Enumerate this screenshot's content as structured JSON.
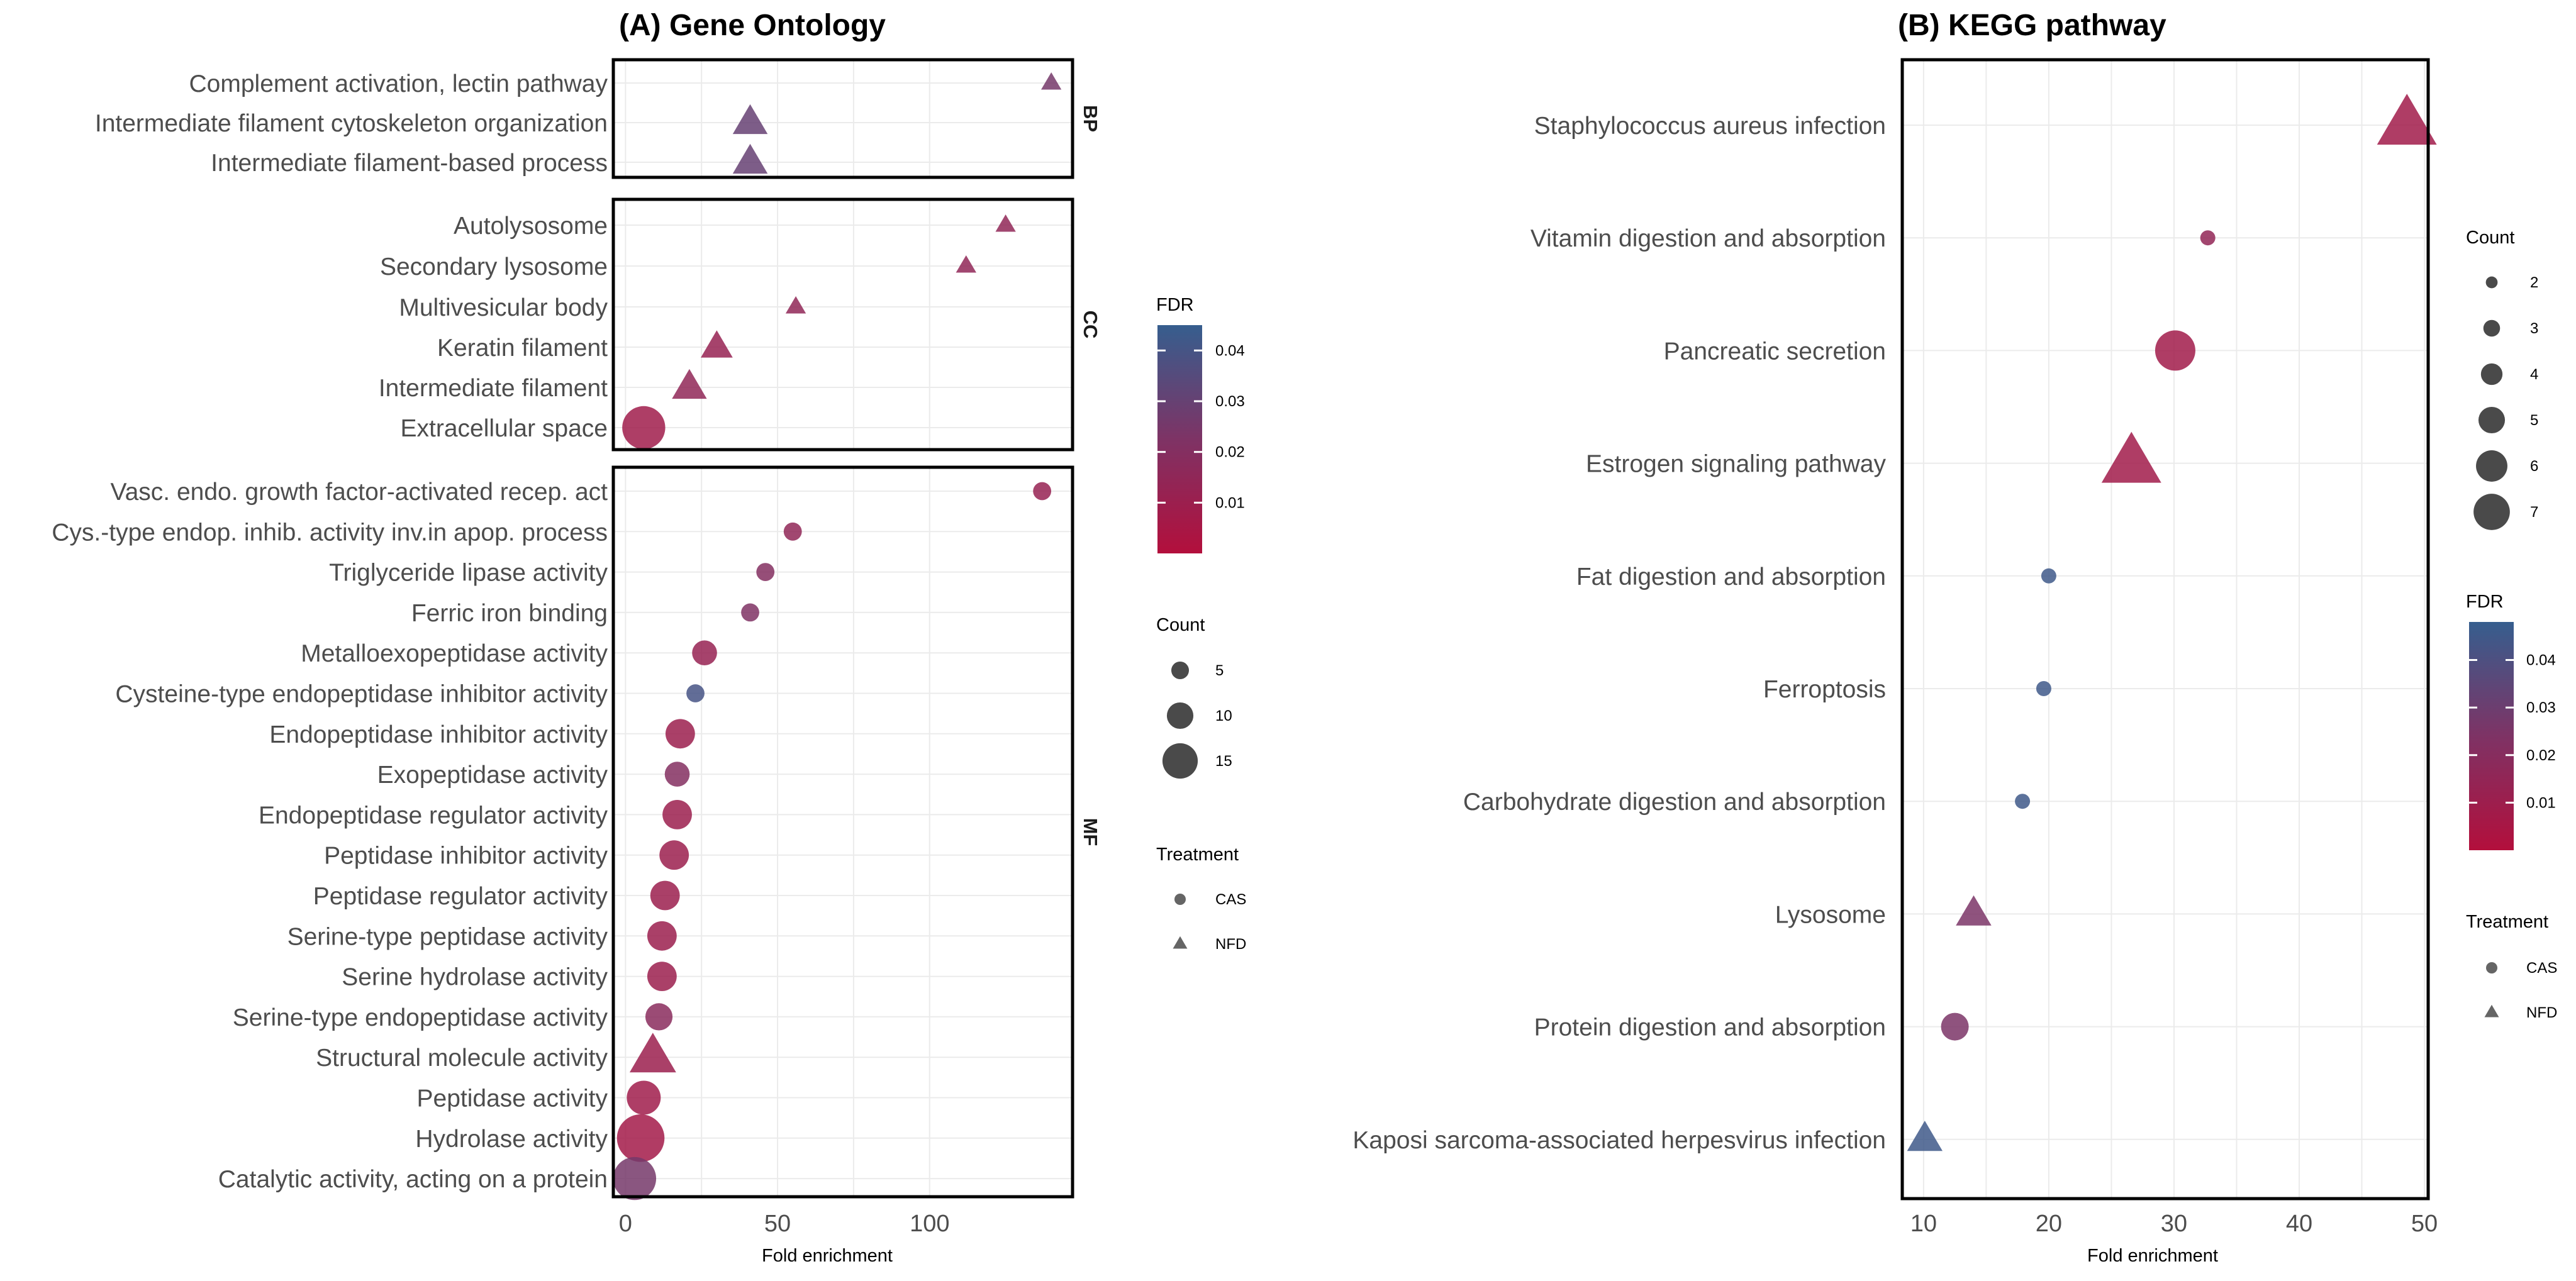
{
  "chart_data": [
    {
      "type": "scatter",
      "title": "(A) Gene Ontology",
      "xlabel": "Fold enrichment",
      "ylabel": "",
      "xlim": [
        -4,
        147
      ],
      "xticks": [
        0,
        50,
        100
      ],
      "facets": [
        {
          "name": "BP",
          "points": [
            {
              "term": "Complement activation, lectin pathway",
              "x": 140,
              "count": 2,
              "fdr": 0.025,
              "treatment": "NFD"
            },
            {
              "term": "Intermediate filament cytoskeleton organization",
              "x": 41,
              "count": 7,
              "fdr": 0.03,
              "treatment": "NFD"
            },
            {
              "term": "Intermediate filament-based process",
              "x": 41,
              "count": 7,
              "fdr": 0.03,
              "treatment": "NFD"
            }
          ]
        },
        {
          "name": "CC",
          "points": [
            {
              "term": "Autolysosome",
              "x": 125,
              "count": 2,
              "fdr": 0.015,
              "treatment": "NFD"
            },
            {
              "term": "Secondary lysosome",
              "x": 112,
              "count": 2,
              "fdr": 0.015,
              "treatment": "NFD"
            },
            {
              "term": "Multivesicular body",
              "x": 56,
              "count": 2,
              "fdr": 0.015,
              "treatment": "NFD"
            },
            {
              "term": "Keratin filament",
              "x": 30,
              "count": 6,
              "fdr": 0.012,
              "treatment": "NFD"
            },
            {
              "term": "Intermediate filament",
              "x": 21,
              "count": 7,
              "fdr": 0.015,
              "treatment": "NFD"
            },
            {
              "term": "Extracellular space",
              "x": 6,
              "count": 14,
              "fdr": 0.008,
              "treatment": "CAS"
            }
          ]
        },
        {
          "name": "MF",
          "points": [
            {
              "term": "Vasc. endo. growth factor-activated recep. act",
              "x": 137,
              "count": 3,
              "fdr": 0.012,
              "treatment": "CAS"
            },
            {
              "term": "Cys.-type endop. inhib. activity inv.in apop. process",
              "x": 55,
              "count": 3,
              "fdr": 0.015,
              "treatment": "CAS"
            },
            {
              "term": "Triglyceride lipase activity",
              "x": 46,
              "count": 3,
              "fdr": 0.02,
              "treatment": "CAS"
            },
            {
              "term": "Ferric iron binding",
              "x": 41,
              "count": 3,
              "fdr": 0.022,
              "treatment": "CAS"
            },
            {
              "term": "Metalloexopeptidase activity",
              "x": 26,
              "count": 6,
              "fdr": 0.012,
              "treatment": "CAS"
            },
            {
              "term": "Cysteine-type endopeptidase inhibitor activity",
              "x": 23,
              "count": 3,
              "fdr": 0.04,
              "treatment": "CAS"
            },
            {
              "term": "Endopeptidase inhibitor activity",
              "x": 18,
              "count": 8,
              "fdr": 0.01,
              "treatment": "CAS"
            },
            {
              "term": "Exopeptidase activity",
              "x": 17,
              "count": 6,
              "fdr": 0.02,
              "treatment": "CAS"
            },
            {
              "term": "Endopeptidase regulator activity",
              "x": 17,
              "count": 8,
              "fdr": 0.01,
              "treatment": "CAS"
            },
            {
              "term": "Peptidase inhibitor activity",
              "x": 16,
              "count": 8,
              "fdr": 0.01,
              "treatment": "CAS"
            },
            {
              "term": "Peptidase regulator activity",
              "x": 13,
              "count": 8,
              "fdr": 0.01,
              "treatment": "CAS"
            },
            {
              "term": "Serine-type peptidase activity",
              "x": 12,
              "count": 8,
              "fdr": 0.01,
              "treatment": "CAS"
            },
            {
              "term": "Serine hydrolase activity",
              "x": 12,
              "count": 8,
              "fdr": 0.01,
              "treatment": "CAS"
            },
            {
              "term": "Serine-type endopeptidase activity",
              "x": 11,
              "count": 7,
              "fdr": 0.018,
              "treatment": "CAS"
            },
            {
              "term": "Structural molecule activity",
              "x": 9,
              "count": 11,
              "fdr": 0.01,
              "treatment": "NFD"
            },
            {
              "term": "Peptidase activity",
              "x": 6,
              "count": 10,
              "fdr": 0.008,
              "treatment": "CAS"
            },
            {
              "term": "Hydrolase activity",
              "x": 5,
              "count": 16,
              "fdr": 0.007,
              "treatment": "CAS"
            },
            {
              "term": "Catalytic activity, acting on a protein",
              "x": 3,
              "count": 14,
              "fdr": 0.025,
              "treatment": "CAS"
            }
          ]
        }
      ],
      "legend": {
        "fdr_title": "FDR",
        "fdr_range": [
          0.0,
          0.045
        ],
        "fdr_ticks": [
          0.01,
          0.02,
          0.03,
          0.04
        ],
        "fdr_tick_labels": [
          "0.01",
          "0.02",
          "0.03",
          "0.04"
        ],
        "count_title": "Count",
        "count_levels": [
          5,
          10,
          15
        ],
        "count_labels": [
          "5",
          "10",
          "15"
        ],
        "treatment_title": "Treatment",
        "treatments": [
          "CAS",
          "NFD"
        ]
      }
    },
    {
      "type": "scatter",
      "title": "(B) KEGG pathway",
      "xlabel": "Fold enrichment",
      "ylabel": "",
      "xlim": [
        8.3,
        50.3
      ],
      "xticks": [
        10,
        20,
        30,
        40,
        50
      ],
      "points": [
        {
          "term": "Staphylococcus aureus infection",
          "x": 48.6,
          "count": 7,
          "fdr": 0.008,
          "treatment": "NFD"
        },
        {
          "term": "Vitamin digestion and absorption",
          "x": 32.7,
          "count": 2,
          "fdr": 0.015,
          "treatment": "CAS"
        },
        {
          "term": "Pancreatic secretion",
          "x": 30.1,
          "count": 6,
          "fdr": 0.008,
          "treatment": "CAS"
        },
        {
          "term": "Estrogen signaling pathway",
          "x": 26.6,
          "count": 7,
          "fdr": 0.008,
          "treatment": "NFD"
        },
        {
          "term": "Fat digestion and absorption",
          "x": 20.0,
          "count": 2,
          "fdr": 0.045,
          "treatment": "CAS"
        },
        {
          "term": "Ferroptosis",
          "x": 19.6,
          "count": 2,
          "fdr": 0.045,
          "treatment": "CAS"
        },
        {
          "term": "Carbohydrate digestion and absorption",
          "x": 17.9,
          "count": 2,
          "fdr": 0.045,
          "treatment": "CAS"
        },
        {
          "term": "Lysosome",
          "x": 14.0,
          "count": 4,
          "fdr": 0.025,
          "treatment": "NFD"
        },
        {
          "term": "Protein digestion and absorption",
          "x": 12.5,
          "count": 4,
          "fdr": 0.025,
          "treatment": "CAS"
        },
        {
          "term": "Kaposi sarcoma-associated herpesvirus infection",
          "x": 10.1,
          "count": 4,
          "fdr": 0.045,
          "treatment": "NFD"
        }
      ],
      "legend": {
        "count_title": "Count",
        "count_levels": [
          2,
          3,
          4,
          5,
          6,
          7
        ],
        "count_labels": [
          "2",
          "3",
          "4",
          "5",
          "6",
          "7"
        ],
        "fdr_title": "FDR",
        "fdr_range": [
          0.0,
          0.048
        ],
        "fdr_ticks": [
          0.01,
          0.02,
          0.03,
          0.04
        ],
        "fdr_tick_labels": [
          "0.01",
          "0.02",
          "0.03",
          "0.04"
        ],
        "treatment_title": "Treatment",
        "treatments": [
          "CAS",
          "NFD"
        ]
      }
    }
  ],
  "colors": {
    "fdr_low": "#b30f3c",
    "fdr_mid": "#7e3365",
    "fdr_high": "#365e8e",
    "grid": "#ebebeb",
    "legend_key": "#4a4a4a"
  }
}
